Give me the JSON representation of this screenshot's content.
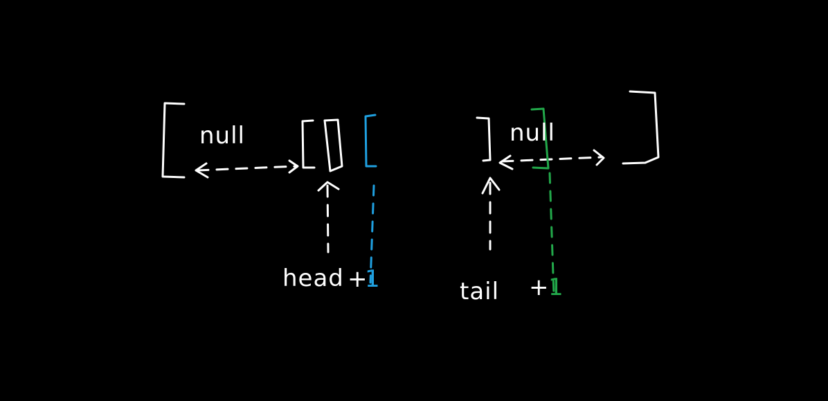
{
  "diagram": {
    "left_null_label": "null",
    "right_null_label": "null",
    "head_label": "head",
    "head_plus": "+",
    "head_one": "1",
    "tail_label": "tail",
    "tail_plus": "+",
    "tail_one": "1"
  },
  "colors": {
    "background": "#000000",
    "ink": "#ffffff",
    "head_next": "#1fa0e0",
    "tail_next": "#22a84a"
  }
}
